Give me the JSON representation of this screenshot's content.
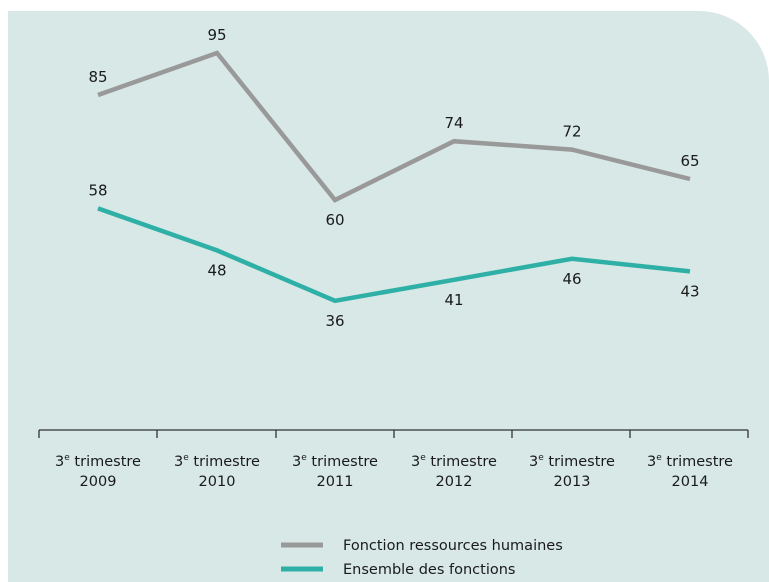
{
  "chart_data": {
    "type": "line",
    "categories": [
      {
        "line1_prefix": "3",
        "line1_sup": "e",
        "line1_rest": " trimestre",
        "line2": "2009"
      },
      {
        "line1_prefix": "3",
        "line1_sup": "e",
        "line1_rest": " trimestre",
        "line2": "2010"
      },
      {
        "line1_prefix": "3",
        "line1_sup": "e",
        "line1_rest": " trimestre",
        "line2": "2011"
      },
      {
        "line1_prefix": "3",
        "line1_sup": "e",
        "line1_rest": " trimestre",
        "line2": "2012"
      },
      {
        "line1_prefix": "3",
        "line1_sup": "e",
        "line1_rest": " trimestre",
        "line2": "2013"
      },
      {
        "line1_prefix": "3",
        "line1_sup": "e",
        "line1_rest": " trimestre",
        "line2": "2014"
      }
    ],
    "series": [
      {
        "name": "Fonction ressources humaines",
        "color": "#999999",
        "values": [
          85,
          95,
          60,
          74,
          72,
          65
        ],
        "label_position": [
          "above",
          "above",
          "below",
          "above",
          "above",
          "above"
        ]
      },
      {
        "name": "Ensemble des fonctions",
        "color": "#2fb0a6",
        "values": [
          58,
          48,
          36,
          41,
          46,
          43
        ],
        "label_position": [
          "above",
          "below",
          "below",
          "below",
          "below",
          "below"
        ]
      }
    ],
    "grid": false,
    "legend_position": "bottom-center"
  },
  "colors": {
    "background_panel": "#d7e8e6",
    "axis": "#333333"
  }
}
